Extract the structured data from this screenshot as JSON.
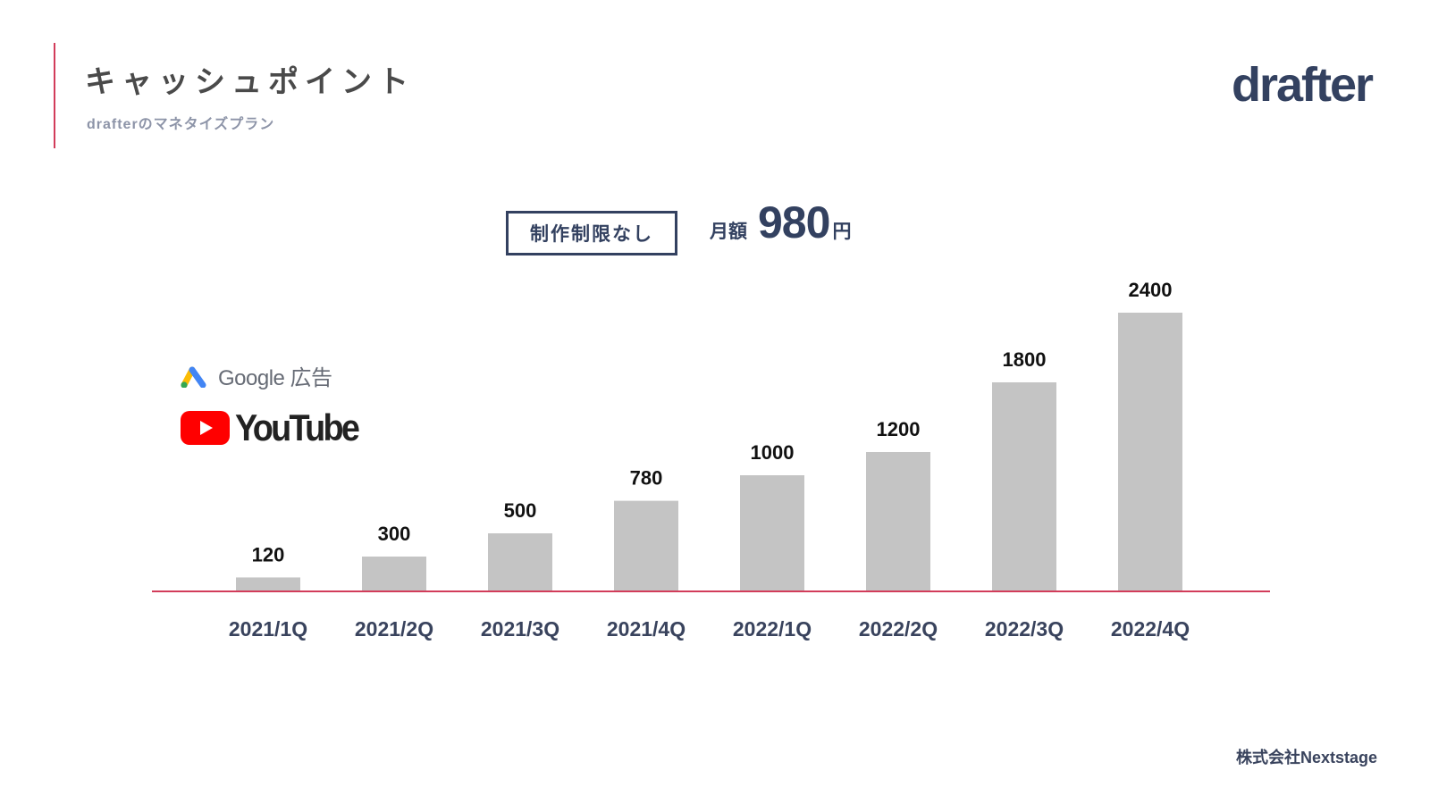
{
  "header": {
    "title": "キャッシュポイント",
    "subtitle": "drafterのマネタイズプラン",
    "logo_text": "drafter"
  },
  "plan": {
    "badge": "制作制限なし",
    "price_label": "月額",
    "price_value": "980",
    "price_unit": "円"
  },
  "platforms": {
    "google_ads": {
      "text": "Google 広告",
      "icon": "google-ads-icon"
    },
    "youtube": {
      "text": "YouTube",
      "icon": "youtube-play-icon"
    }
  },
  "chart_data": {
    "type": "bar",
    "categories": [
      "2021/1Q",
      "2021/2Q",
      "2021/3Q",
      "2021/4Q",
      "2022/1Q",
      "2022/2Q",
      "2022/3Q",
      "2022/4Q"
    ],
    "values": [
      120,
      300,
      500,
      780,
      1000,
      1200,
      1800,
      2400
    ],
    "ylim": [
      0,
      2400
    ],
    "grid": false,
    "colors": {
      "bar": "#c4c4c4",
      "axis": "#d23c5a",
      "value_label": "#111111",
      "category_label": "#39435d"
    }
  },
  "footer": {
    "company": "株式会社Nextstage"
  }
}
